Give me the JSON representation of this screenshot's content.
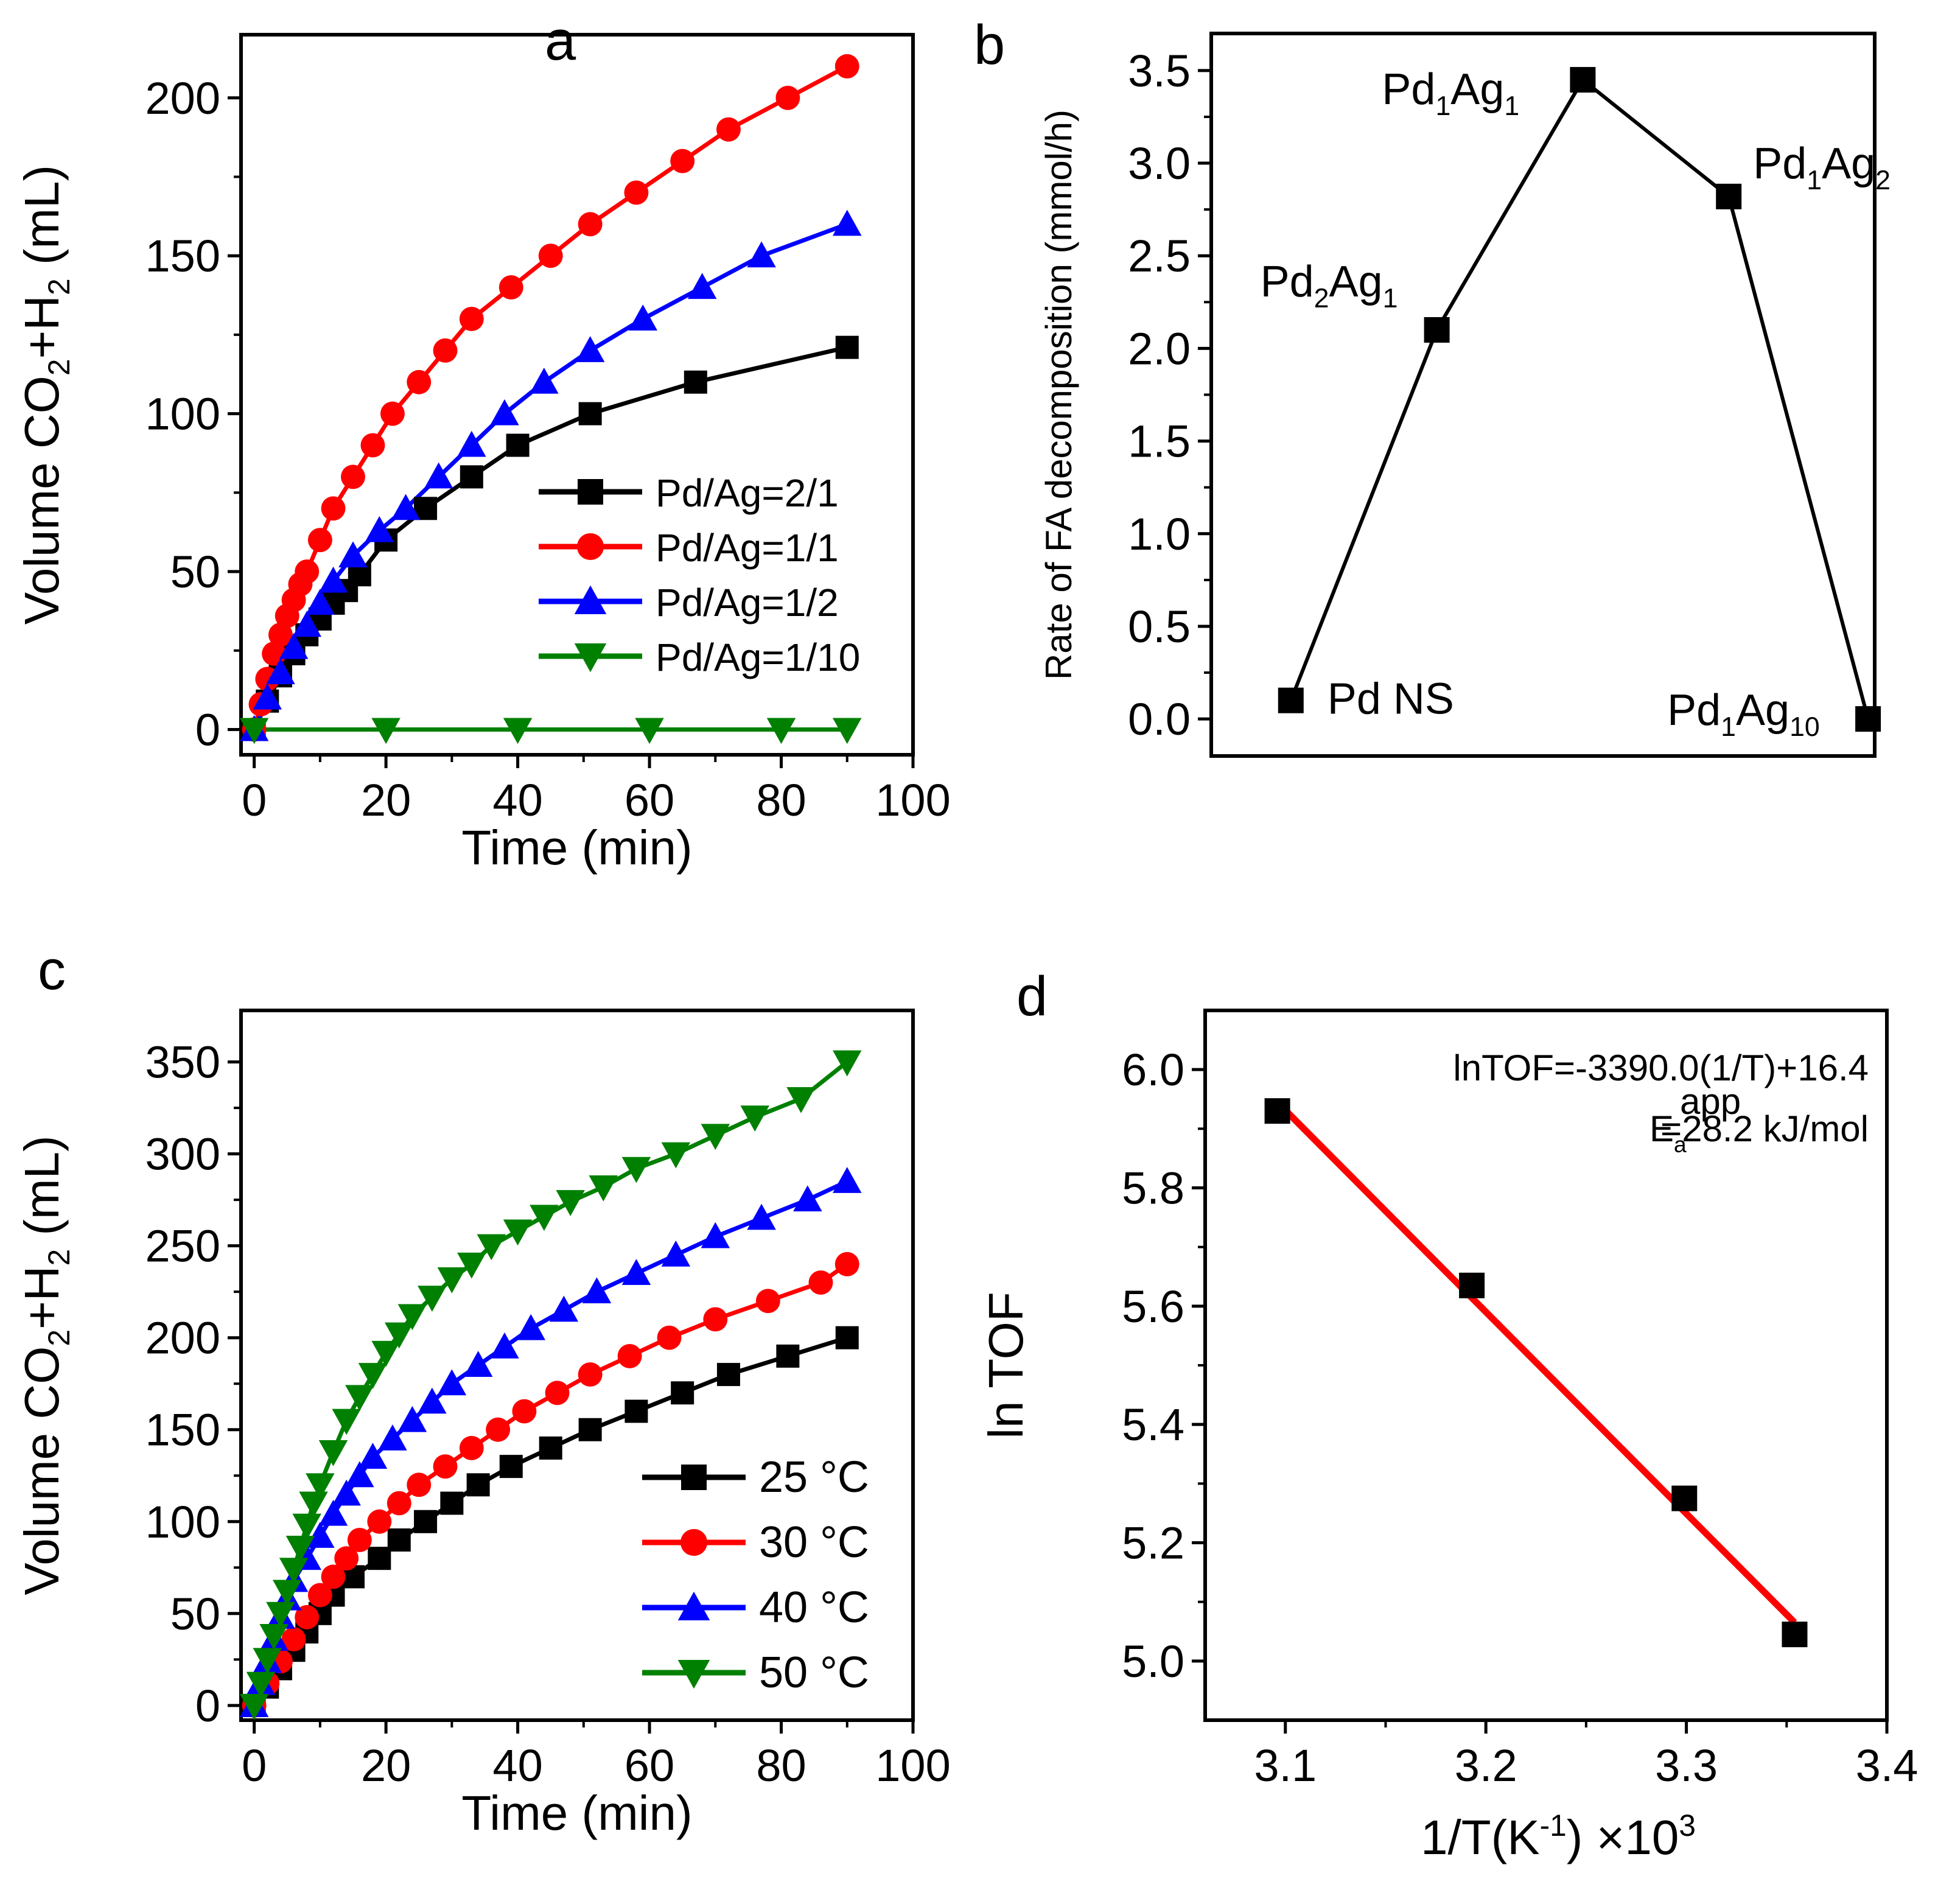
{
  "chart_data": [
    {
      "panel": "a",
      "type": "line",
      "xlabel": "Time (min)",
      "ylabel_parts": [
        "Volume CO",
        "2",
        "+H",
        "2",
        " (mL)"
      ],
      "xlim": [
        -2,
        100
      ],
      "ylim": [
        -8,
        220
      ],
      "xticks": [
        0,
        20,
        40,
        60,
        80,
        100
      ],
      "yticks": [
        0,
        50,
        100,
        150,
        200
      ],
      "legend_position": "center-right",
      "series": [
        {
          "name": "Pd/Ag=2/1",
          "marker": "square",
          "color": "#000000",
          "x": [
            0,
            2,
            4,
            6,
            8,
            10,
            12,
            14,
            16,
            20,
            26,
            33,
            40,
            51,
            67,
            90
          ],
          "y": [
            0,
            9,
            17,
            24,
            30,
            35,
            40,
            44,
            49,
            60,
            70,
            80,
            90,
            100,
            110,
            121
          ]
        },
        {
          "name": "Pd/Ag=1/1",
          "marker": "circle",
          "color": "#ff0000",
          "x": [
            0,
            1,
            2,
            3,
            4,
            5,
            6,
            7,
            8,
            10,
            12,
            15,
            18,
            21,
            25,
            29,
            33,
            39,
            45,
            51,
            58,
            65,
            72,
            81,
            90
          ],
          "y": [
            0,
            8,
            16,
            24,
            30,
            36,
            41,
            46,
            50,
            60,
            70,
            80,
            90,
            100,
            110,
            120,
            130,
            140,
            150,
            160,
            170,
            180,
            190,
            200,
            210
          ]
        },
        {
          "name": "Pd/Ag=1/2",
          "marker": "triangle-up",
          "color": "#0000ff",
          "x": [
            0,
            2,
            4,
            6,
            8,
            10,
            12,
            15,
            19,
            23,
            28,
            33,
            38,
            44,
            51,
            59,
            68,
            77,
            90
          ],
          "y": [
            0,
            10,
            18,
            26,
            33,
            40,
            47,
            55,
            63,
            70,
            80,
            90,
            100,
            110,
            120,
            130,
            140,
            150,
            160
          ]
        },
        {
          "name": "Pd/Ag=1/10",
          "marker": "triangle-down",
          "color": "#008000",
          "x": [
            0,
            20,
            40,
            60,
            80,
            90
          ],
          "y": [
            0,
            0,
            0,
            0,
            0,
            0
          ]
        }
      ]
    },
    {
      "panel": "b",
      "type": "line",
      "ylabel": "Rate of FA decomposition (mmol/h)",
      "ylim": [
        -0.2,
        3.7
      ],
      "yticks": [
        0.0,
        0.5,
        1.0,
        1.5,
        2.0,
        2.5,
        3.0,
        3.5
      ],
      "ytick_labels": [
        "0.0",
        "0.5",
        "1.0",
        "1.5",
        "2.0",
        "2.5",
        "3.0",
        "3.5"
      ],
      "series": [
        {
          "marker": "square",
          "color": "#000000",
          "categories": [
            "Pd NS",
            "Pd2Ag1",
            "Pd1Ag1",
            "Pd1Ag2",
            "Pd1Ag10"
          ],
          "values": [
            0.1,
            2.1,
            3.45,
            2.82,
            0.0
          ]
        }
      ],
      "annotations": [
        {
          "base": "Pd NS",
          "parts": []
        },
        {
          "parts": [
            [
              "Pd",
              ""
            ],
            [
              "2",
              "sub"
            ],
            [
              "Ag",
              ""
            ],
            [
              "1",
              "sub"
            ]
          ]
        },
        {
          "parts": [
            [
              "Pd",
              ""
            ],
            [
              "1",
              "sub"
            ],
            [
              "Ag",
              ""
            ],
            [
              "1",
              "sub"
            ]
          ]
        },
        {
          "parts": [
            [
              "Pd",
              ""
            ],
            [
              "1",
              "sub"
            ],
            [
              "Ag",
              ""
            ],
            [
              "2",
              "sub"
            ]
          ]
        },
        {
          "parts": [
            [
              "Pd",
              ""
            ],
            [
              "1",
              "sub"
            ],
            [
              "Ag",
              ""
            ],
            [
              "10",
              "sub"
            ]
          ]
        }
      ]
    },
    {
      "panel": "c",
      "type": "line",
      "xlabel": "Time (min)",
      "ylabel_parts": [
        "Volume CO",
        "2",
        "+H",
        "2",
        " (mL)"
      ],
      "xlim": [
        -2,
        100
      ],
      "ylim": [
        -8,
        378
      ],
      "xticks": [
        0,
        20,
        40,
        60,
        80,
        100
      ],
      "yticks": [
        0,
        50,
        100,
        150,
        200,
        250,
        300,
        350
      ],
      "legend_position": "bottom-right",
      "series": [
        {
          "name": "25 °C",
          "marker": "square",
          "color": "#000000",
          "x": [
            0,
            2,
            4,
            6,
            8,
            10,
            12,
            15,
            19,
            22,
            26,
            30,
            34,
            39,
            45,
            51,
            58,
            65,
            72,
            81,
            90
          ],
          "y": [
            0,
            10,
            20,
            30,
            40,
            50,
            60,
            70,
            80,
            90,
            100,
            110,
            120,
            130,
            140,
            150,
            160,
            170,
            180,
            190,
            200
          ]
        },
        {
          "name": "30 °C",
          "marker": "circle",
          "color": "#ff0000",
          "x": [
            0,
            2,
            4,
            6,
            8,
            10,
            12,
            14,
            16,
            19,
            22,
            25,
            29,
            33,
            37,
            41,
            46,
            51,
            57,
            63,
            70,
            78,
            86,
            90
          ],
          "y": [
            0,
            12,
            24,
            36,
            48,
            60,
            70,
            80,
            90,
            100,
            110,
            120,
            130,
            140,
            150,
            160,
            170,
            180,
            190,
            200,
            210,
            220,
            230,
            240
          ]
        },
        {
          "name": "40 °C",
          "marker": "triangle-up",
          "color": "#0000ff",
          "x": [
            0,
            1,
            2,
            3,
            4,
            5,
            6,
            8,
            10,
            12,
            14,
            16,
            18,
            21,
            24,
            27,
            30,
            34,
            38,
            42,
            47,
            52,
            58,
            64,
            70,
            77,
            84,
            90
          ],
          "y": [
            0,
            12,
            24,
            36,
            48,
            58,
            68,
            80,
            92,
            104,
            115,
            125,
            135,
            145,
            155,
            165,
            175,
            185,
            195,
            205,
            215,
            225,
            235,
            245,
            255,
            265,
            275,
            285
          ]
        },
        {
          "name": "50 °C",
          "marker": "triangle-down",
          "color": "#008000",
          "x": [
            0,
            1,
            2,
            3,
            4,
            5,
            6,
            7,
            8,
            9,
            10,
            12,
            14,
            16,
            18,
            20,
            22,
            24,
            27,
            30,
            33,
            36,
            40,
            44,
            48,
            53,
            58,
            64,
            70,
            76,
            83,
            90
          ],
          "y": [
            0,
            12,
            25,
            38,
            50,
            62,
            74,
            86,
            98,
            110,
            120,
            138,
            155,
            168,
            180,
            192,
            202,
            212,
            222,
            232,
            240,
            250,
            258,
            266,
            274,
            282,
            292,
            300,
            310,
            320,
            330,
            350
          ]
        }
      ]
    },
    {
      "panel": "d",
      "type": "scatter",
      "xlabel_parts": [
        "1/T(K",
        "-1",
        ") ×10",
        "3"
      ],
      "ylabel": "ln TOF",
      "xlim": [
        3.06,
        3.4
      ],
      "ylim": [
        4.9,
        6.1
      ],
      "xticks": [
        3.1,
        3.2,
        3.3,
        3.4
      ],
      "xtick_labels": [
        "3.1",
        "3.2",
        "3.3",
        "3.4"
      ],
      "yticks": [
        5.0,
        5.2,
        5.4,
        5.6,
        5.8,
        6.0
      ],
      "ytick_labels": [
        "5.0",
        "5.2",
        "5.4",
        "5.6",
        "5.8",
        "6.0"
      ],
      "series": [
        {
          "marker": "square",
          "color": "#000000",
          "x": [
            3.096,
            3.193,
            3.299,
            3.354
          ],
          "y": [
            5.93,
            5.635,
            5.275,
            5.045
          ]
        }
      ],
      "fit": {
        "color": "#ff0000",
        "x": [
          3.096,
          3.354
        ],
        "y": [
          5.945,
          5.065
        ]
      },
      "equation": "lnTOF=-3390.0(1/T)+16.4",
      "ea_parts": [
        "E",
        "a",
        "app",
        "=28.2 kJ/mol"
      ]
    }
  ],
  "panel_letters": [
    "a",
    "b",
    "c",
    "d"
  ]
}
